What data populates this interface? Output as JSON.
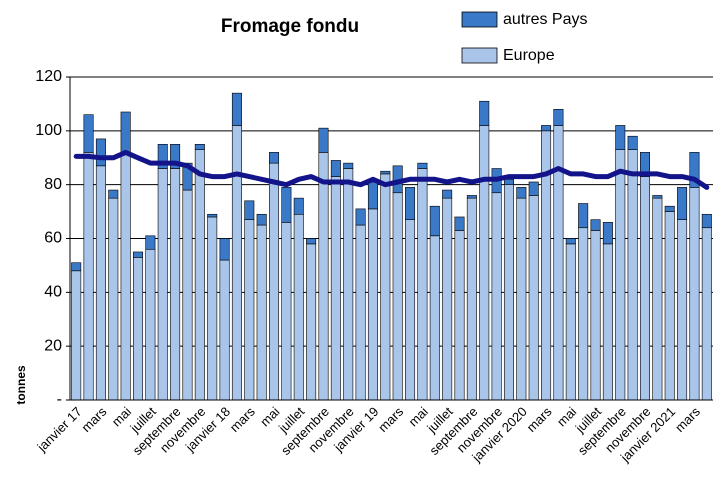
{
  "chart_data": {
    "type": "bar",
    "stacked": true,
    "title": "Fromage fondu",
    "ylabel": "tonnes",
    "categories": [
      "janvier 17",
      null,
      "mars",
      null,
      "mai",
      null,
      "juillet",
      null,
      "septembre",
      null,
      "novembre",
      null,
      "janvier 18",
      null,
      "mars",
      null,
      "mai",
      null,
      "juillet",
      null,
      "septembre",
      null,
      "novembre",
      null,
      "janvier 19",
      null,
      "mars",
      null,
      "mai",
      null,
      "juillet",
      null,
      "septembre",
      null,
      "novembre",
      null,
      "janvier 2020",
      null,
      "mars",
      null,
      "mai",
      null,
      "juillet",
      null,
      "septembre",
      null,
      "novembre",
      null,
      "janvier 2021",
      null,
      "mars",
      null
    ],
    "series": [
      {
        "name": "Europe",
        "color": "#a9c5ea",
        "values": [
          48,
          92,
          87,
          75,
          92,
          53,
          56,
          86,
          86,
          78,
          93,
          68,
          52,
          102,
          67,
          65,
          88,
          66,
          69,
          58,
          92,
          83,
          86,
          65,
          71,
          84,
          77,
          67,
          86,
          61,
          75,
          63,
          75,
          102,
          77,
          80,
          75,
          76,
          100,
          102,
          58,
          64,
          63,
          58,
          93,
          93,
          83,
          75,
          70,
          67,
          79,
          64
        ]
      },
      {
        "name": "autres Pays",
        "color": "#3a78c8",
        "values": [
          3,
          14,
          10,
          3,
          15,
          2,
          5,
          9,
          9,
          10,
          2,
          1,
          8,
          12,
          7,
          4,
          4,
          13,
          6,
          2,
          9,
          6,
          2,
          6,
          10,
          1,
          10,
          12,
          2,
          11,
          3,
          5,
          1,
          9,
          9,
          2,
          4,
          5,
          2,
          6,
          2,
          9,
          4,
          8,
          9,
          5,
          9,
          1,
          2,
          12,
          13,
          5
        ]
      },
      {
        "type": "line",
        "color": "#14148a",
        "values": [
          90.5,
          90.5,
          90,
          90,
          92,
          90,
          88,
          88,
          88,
          87,
          84,
          83,
          83,
          84,
          83,
          82,
          81,
          80,
          82,
          83,
          81,
          81,
          81,
          80,
          82,
          80,
          81,
          82,
          82,
          82,
          81,
          82,
          81,
          82,
          82,
          83,
          83,
          83,
          84,
          86,
          84,
          84,
          83,
          83,
          85,
          84,
          84,
          84,
          83,
          83,
          82,
          79
        ]
      }
    ],
    "ylim": [
      0,
      120
    ],
    "yticks": [
      {
        "value": 0,
        "label": "-"
      },
      20,
      40,
      60,
      80,
      100,
      120
    ],
    "grid": true
  }
}
